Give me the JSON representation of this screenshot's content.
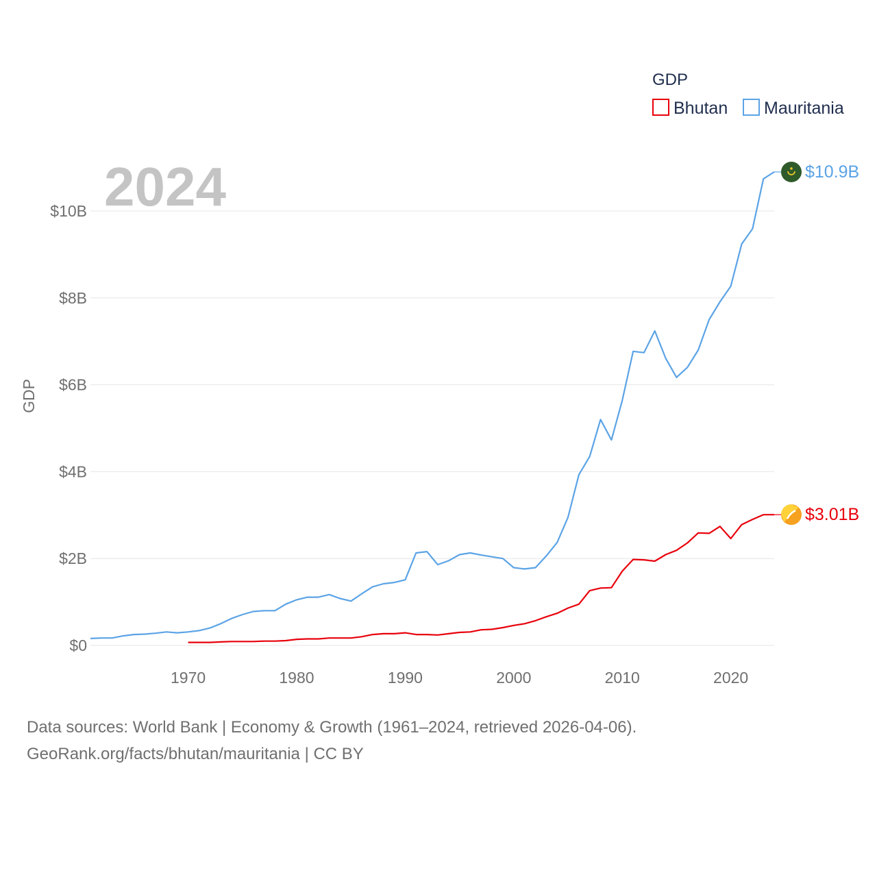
{
  "chart_data": {
    "type": "line",
    "year_label": "2024",
    "ylabel": "GDP",
    "legend": {
      "title": "GDP",
      "items": [
        {
          "name": "Bhutan",
          "color": "#e8000b"
        },
        {
          "name": "Mauritania",
          "color": "#5ba3e6"
        }
      ]
    },
    "xlim": [
      1961,
      2024
    ],
    "ylim": [
      0,
      10.9
    ],
    "x_ticks": [
      {
        "value": 1970,
        "label": "1970"
      },
      {
        "value": 1980,
        "label": "1980"
      },
      {
        "value": 1990,
        "label": "1990"
      },
      {
        "value": 2000,
        "label": "2000"
      },
      {
        "value": 2010,
        "label": "2010"
      },
      {
        "value": 2020,
        "label": "2020"
      }
    ],
    "y_ticks": [
      {
        "value": 0,
        "label": "$0"
      },
      {
        "value": 2,
        "label": "$2B"
      },
      {
        "value": 4,
        "label": "$4B"
      },
      {
        "value": 6,
        "label": "$6B"
      },
      {
        "value": 8,
        "label": "$8B"
      },
      {
        "value": 10,
        "label": "$10B"
      }
    ],
    "series": [
      {
        "name": "Mauritania",
        "color": "#5ba3e6",
        "end_label": "$10.9B",
        "flag_icon": "mauritania-flag-icon",
        "x": [
          1961,
          1962,
          1963,
          1964,
          1965,
          1966,
          1967,
          1968,
          1969,
          1970,
          1971,
          1972,
          1973,
          1974,
          1975,
          1976,
          1977,
          1978,
          1979,
          1980,
          1981,
          1982,
          1983,
          1984,
          1985,
          1986,
          1987,
          1988,
          1989,
          1990,
          1991,
          1992,
          1993,
          1994,
          1995,
          1996,
          1997,
          1998,
          1999,
          2000,
          2001,
          2002,
          2003,
          2004,
          2005,
          2006,
          2007,
          2008,
          2009,
          2010,
          2011,
          2012,
          2013,
          2014,
          2015,
          2016,
          2017,
          2018,
          2019,
          2020,
          2021,
          2022,
          2023,
          2024
        ],
        "values": [
          0.16,
          0.17,
          0.17,
          0.22,
          0.25,
          0.26,
          0.28,
          0.31,
          0.29,
          0.31,
          0.34,
          0.4,
          0.5,
          0.62,
          0.71,
          0.78,
          0.8,
          0.8,
          0.95,
          1.05,
          1.11,
          1.11,
          1.17,
          1.08,
          1.02,
          1.19,
          1.35,
          1.42,
          1.45,
          1.51,
          2.13,
          2.16,
          1.86,
          1.95,
          2.09,
          2.13,
          2.08,
          2.04,
          2.0,
          1.79,
          1.76,
          1.79,
          2.06,
          2.37,
          2.95,
          3.93,
          4.35,
          5.2,
          4.73,
          5.64,
          6.77,
          6.74,
          7.24,
          6.61,
          6.17,
          6.4,
          6.8,
          7.5,
          7.91,
          8.27,
          9.24,
          9.59,
          10.74,
          10.9
        ]
      },
      {
        "name": "Bhutan",
        "color": "#e8000b",
        "end_label": "$3.01B",
        "flag_icon": "bhutan-flag-icon",
        "x": [
          1970,
          1971,
          1972,
          1973,
          1974,
          1975,
          1976,
          1977,
          1978,
          1979,
          1980,
          1981,
          1982,
          1983,
          1984,
          1985,
          1986,
          1987,
          1988,
          1989,
          1990,
          1991,
          1992,
          1993,
          1994,
          1995,
          1996,
          1997,
          1998,
          1999,
          2000,
          2001,
          2002,
          2003,
          2004,
          2005,
          2006,
          2007,
          2008,
          2009,
          2010,
          2011,
          2012,
          2013,
          2014,
          2015,
          2016,
          2017,
          2018,
          2019,
          2020,
          2021,
          2022,
          2023,
          2024
        ],
        "values": [
          0.07,
          0.07,
          0.07,
          0.08,
          0.09,
          0.09,
          0.09,
          0.1,
          0.1,
          0.11,
          0.14,
          0.15,
          0.15,
          0.17,
          0.17,
          0.17,
          0.2,
          0.25,
          0.27,
          0.27,
          0.29,
          0.25,
          0.25,
          0.24,
          0.27,
          0.3,
          0.31,
          0.36,
          0.37,
          0.41,
          0.46,
          0.5,
          0.57,
          0.66,
          0.74,
          0.86,
          0.95,
          1.26,
          1.32,
          1.33,
          1.71,
          1.98,
          1.97,
          1.94,
          2.09,
          2.19,
          2.36,
          2.59,
          2.58,
          2.74,
          2.46,
          2.78,
          2.9,
          3.01,
          3.01
        ]
      }
    ]
  },
  "footer": {
    "line1": "Data sources: World Bank | Economy & Growth (1961–2024, retrieved 2026-04-06).",
    "line2": "GeoRank.org/facts/bhutan/mauritania | CC BY"
  }
}
